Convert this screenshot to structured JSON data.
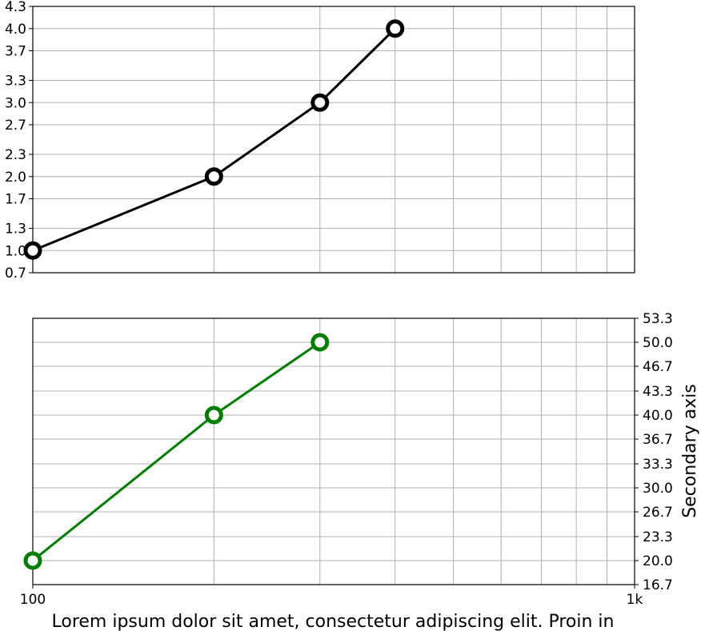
{
  "chart_data": [
    {
      "type": "line",
      "x_scale": "log",
      "xlim": [
        100,
        1000
      ],
      "ylim": [
        0.7,
        4.3
      ],
      "yticks": [
        "0.7",
        "1.0",
        "1.3",
        "1.7",
        "2.0",
        "2.3",
        "2.7",
        "3.0",
        "3.3",
        "3.7",
        "4.0",
        "4.3"
      ],
      "grid": true,
      "xlabel": "",
      "ylabel": "",
      "series": [
        {
          "x": [
            100,
            200,
            300,
            400
          ],
          "y": [
            1,
            2,
            3,
            4
          ],
          "color": "#000000",
          "marker": "hollow-circle"
        }
      ]
    },
    {
      "type": "line",
      "x_scale": "log",
      "xlim": [
        100,
        1000
      ],
      "ylim": [
        16.7,
        53.3
      ],
      "yticks": [
        "16.7",
        "20.0",
        "23.3",
        "26.7",
        "30.0",
        "33.3",
        "36.7",
        "40.0",
        "43.3",
        "46.7",
        "50.0",
        "53.3"
      ],
      "y_axis_side": "right",
      "xticks": [
        "100",
        "1k"
      ],
      "grid": true,
      "xlabel": "",
      "ylabel": "Secondary axis",
      "series": [
        {
          "x": [
            100,
            200,
            300
          ],
          "y": [
            20,
            40,
            50
          ],
          "color": "#008000",
          "marker": "hollow-circle"
        }
      ]
    }
  ],
  "caption": "Lorem ipsum dolor sit amet, consectetur adipiscing elit. Proin in"
}
